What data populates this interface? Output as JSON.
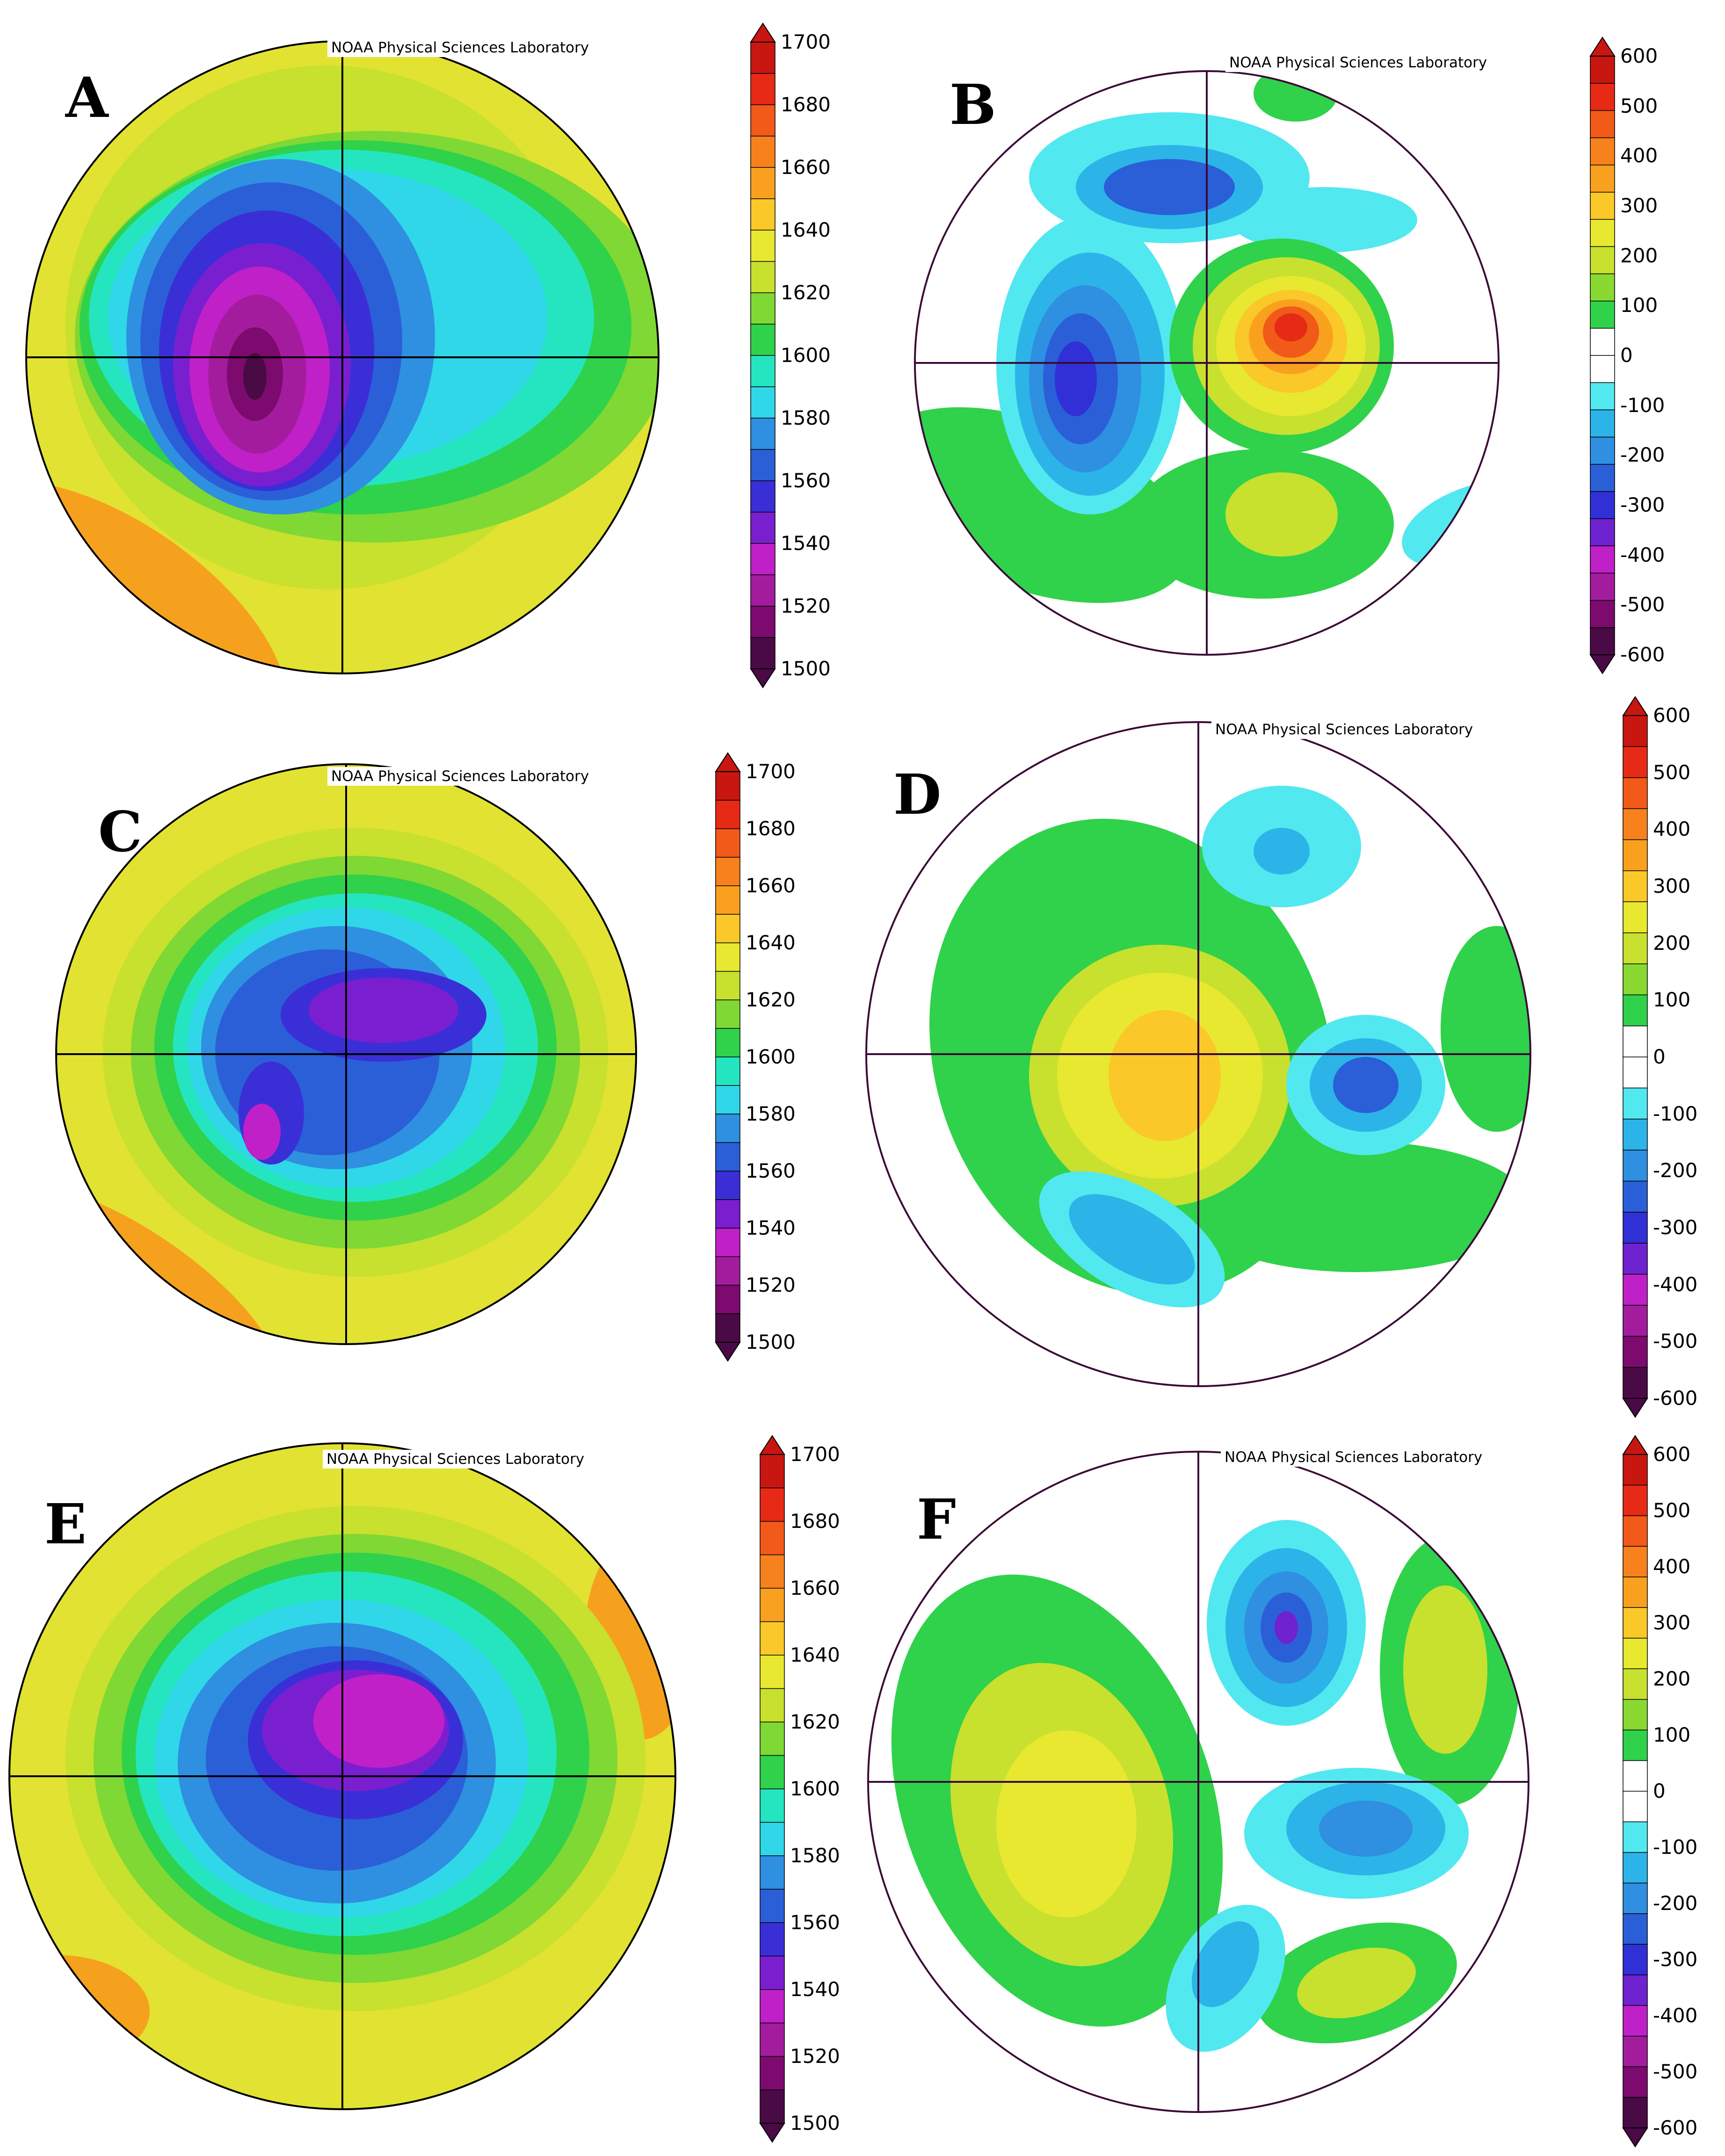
{
  "credit_text": "NOAA Physical Sciences Laboratory",
  "panels": [
    {
      "letter": "A",
      "type": "height",
      "credit": "NOAA Physical Sciences Laboratory"
    },
    {
      "letter": "B",
      "type": "anomaly",
      "credit": "NOAA Physical Sciences Laboratory"
    },
    {
      "letter": "C",
      "type": "height",
      "credit": "NOAA Physical Sciences Laboratory"
    },
    {
      "letter": "D",
      "type": "anomaly",
      "credit": "NOAA Physical Sciences Laboratory"
    },
    {
      "letter": "E",
      "type": "height",
      "credit": "NOAA Physical Sciences Laboratory"
    },
    {
      "letter": "F",
      "type": "anomaly",
      "credit": "NOAA Physical Sciences Laboratory"
    }
  ],
  "colorbars": {
    "height": {
      "ticks": [
        "1700",
        "1680",
        "1660",
        "1640",
        "1620",
        "1600",
        "1580",
        "1560",
        "1540",
        "1520",
        "1500"
      ],
      "colors": [
        "#4a0a45",
        "#7d0a6e",
        "#a41c9e",
        "#c020c8",
        "#7a1fd0",
        "#3a2fd6",
        "#2a5fd8",
        "#2f8fe0",
        "#2fd7e8",
        "#25e5c0",
        "#2fd24a",
        "#7fd834",
        "#c8e02e",
        "#e8e830",
        "#fac828",
        "#f9a11f",
        "#f7811c",
        "#f15a18",
        "#e62a15",
        "#c81610"
      ]
    },
    "anomaly": {
      "ticks": [
        "600",
        "500",
        "400",
        "300",
        "200",
        "100",
        "0",
        "-100",
        "-200",
        "-300",
        "-400",
        "-500",
        "-600"
      ],
      "colors": [
        "#4a0a45",
        "#7d0a6e",
        "#a41c9e",
        "#c020c8",
        "#6f22d0",
        "#3030d6",
        "#2a5fd8",
        "#2f8fe0",
        "#2cb4e8",
        "#52e8f0",
        "#ffffff",
        "#ffffff",
        "#2fd24a",
        "#8ad832",
        "#c8e02e",
        "#e8e830",
        "#fac828",
        "#f9a11f",
        "#f7811c",
        "#f15a18",
        "#e62a15",
        "#c81610"
      ]
    }
  },
  "palette": {
    "far_yellow": "#e2e232",
    "orange_rim": "#f6a11e",
    "dark_magenta": "#4a0a45",
    "magenta": "#a41c9e",
    "purple": "#7a1fd0",
    "blue": "#2a5fd8",
    "cyan": "#2fd7e8",
    "green": "#2fd24a",
    "yellow_green": "#c8e02e",
    "yellow": "#f0e030",
    "orange": "#f9a11f",
    "red": "#e62a15",
    "coast": "#3a0a36"
  }
}
